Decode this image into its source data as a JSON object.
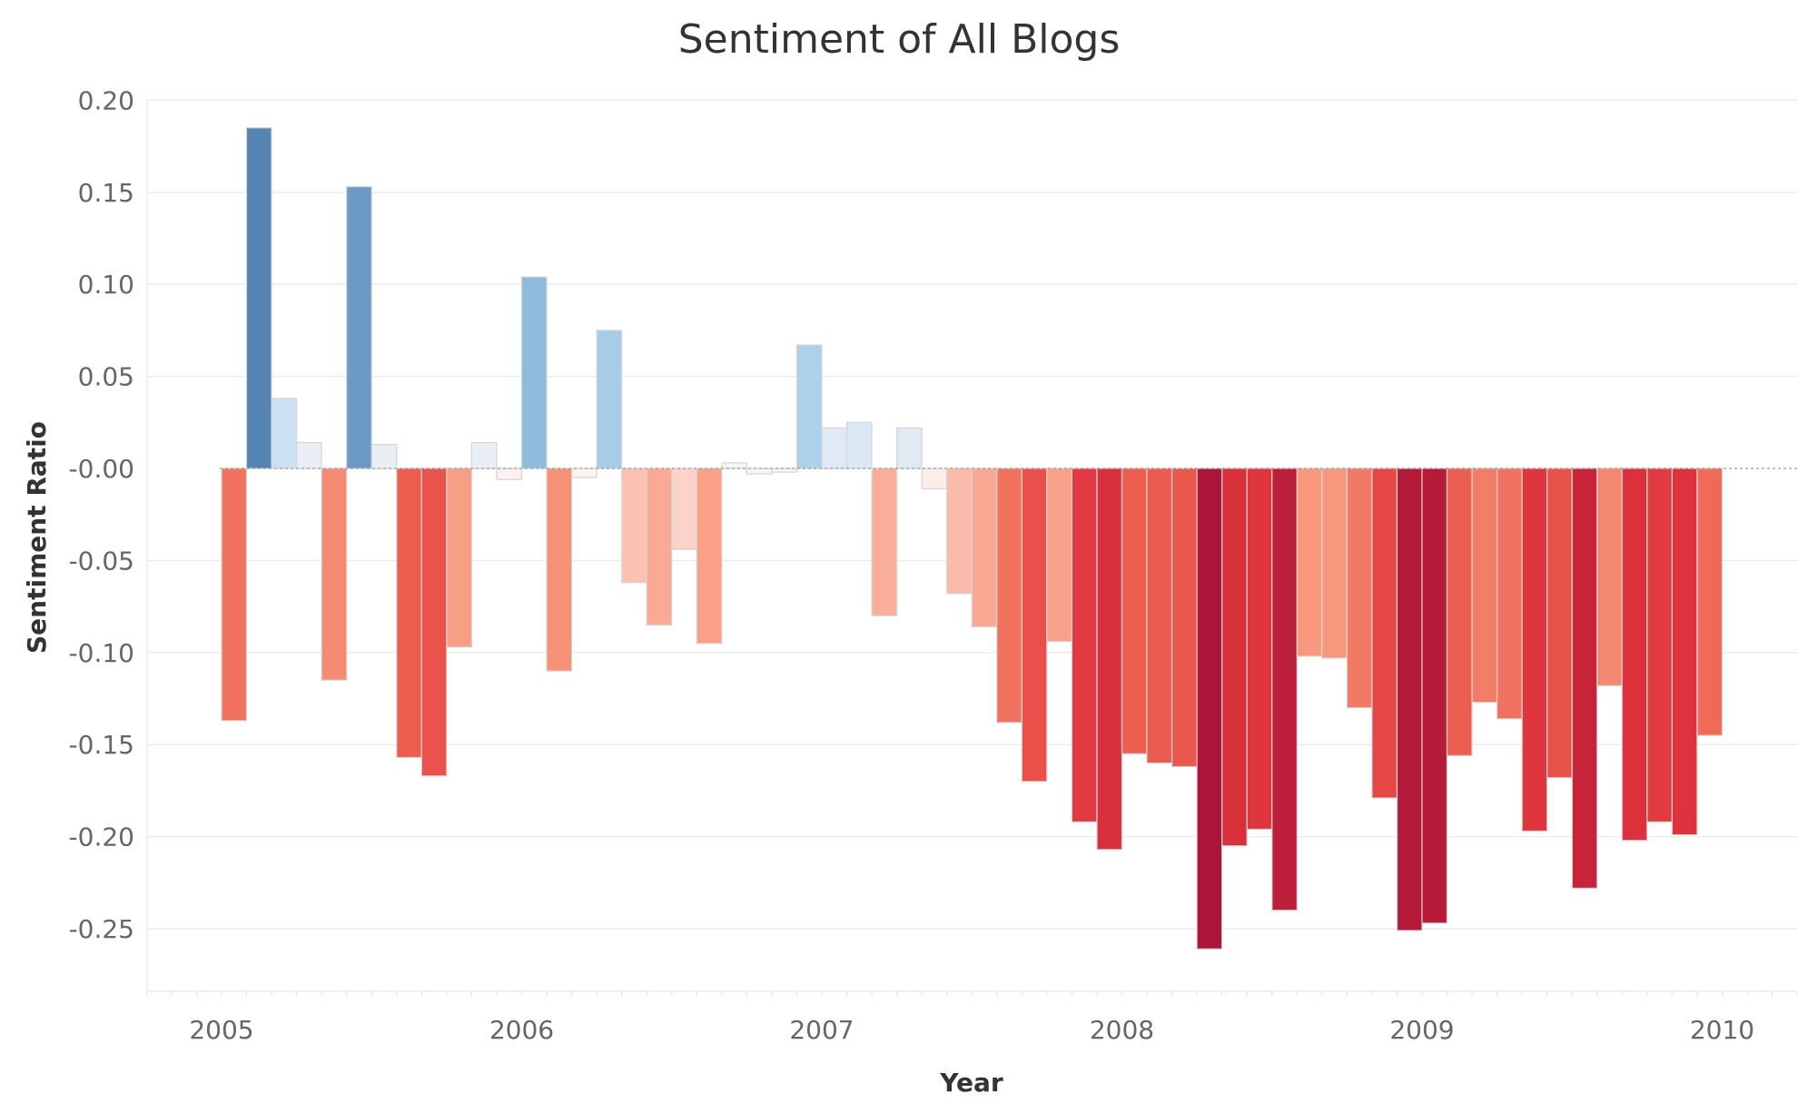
{
  "chart_data": {
    "type": "bar",
    "title": "Sentiment of All Blogs",
    "xlabel": "Year",
    "ylabel": "Sentiment Ratio",
    "ylim": [
      -0.27,
      0.2
    ],
    "grid": true,
    "legend": "none",
    "y_tick_labels": [
      "0.20",
      "0.15",
      "0.10",
      "0.05",
      "-0.00",
      "-0.05",
      "-0.10",
      "-0.15",
      "-0.20",
      "-0.25"
    ],
    "y_tick_values": [
      0.2,
      0.15,
      0.1,
      0.05,
      0.0,
      -0.05,
      -0.1,
      -0.15,
      -0.2,
      -0.25
    ],
    "x_tick_labels": [
      "2005",
      "2006",
      "2007",
      "2008",
      "2009",
      "2010"
    ],
    "x_tick_values": [
      2005,
      2006,
      2007,
      2008,
      2009,
      2010
    ],
    "x_range": [
      2004.75,
      2010.25
    ],
    "bar_width_years": 0.0833,
    "x": [
      2005.0417,
      2005.125,
      2005.2083,
      2005.2917,
      2005.375,
      2005.4583,
      2005.5417,
      2005.625,
      2005.7083,
      2005.7917,
      2005.875,
      2005.9583,
      2006.0417,
      2006.125,
      2006.2083,
      2006.2917,
      2006.375,
      2006.4583,
      2006.5417,
      2006.625,
      2006.7083,
      2006.7917,
      2006.875,
      2006.9583,
      2007.0417,
      2007.125,
      2007.2083,
      2007.2917,
      2007.375,
      2007.4583,
      2007.5417,
      2007.625,
      2007.7083,
      2007.7917,
      2007.875,
      2007.9583,
      2008.0417,
      2008.125,
      2008.2083,
      2008.2917,
      2008.375,
      2008.4583,
      2008.5417,
      2008.625,
      2008.7083,
      2008.7917,
      2008.875,
      2008.9583,
      2009.0417,
      2009.125,
      2009.2083,
      2009.2917,
      2009.375,
      2009.4583,
      2009.5417,
      2009.625,
      2009.7083,
      2009.7917,
      2009.875,
      2009.9583
    ],
    "values": [
      -0.137,
      0.185,
      0.038,
      0.014,
      -0.115,
      0.153,
      0.013,
      -0.157,
      -0.167,
      -0.097,
      0.014,
      -0.006,
      0.104,
      -0.11,
      -0.005,
      0.075,
      -0.062,
      -0.085,
      -0.044,
      -0.095,
      0.003,
      -0.003,
      -0.002,
      0.067,
      0.022,
      0.025,
      -0.08,
      0.022,
      -0.011,
      -0.068,
      -0.086,
      -0.138,
      -0.17,
      -0.094,
      -0.192,
      -0.207,
      -0.155,
      -0.16,
      -0.162,
      -0.261,
      -0.205,
      -0.196,
      -0.24,
      -0.102,
      -0.103,
      -0.13,
      -0.179,
      -0.251,
      -0.247,
      -0.156,
      -0.127,
      -0.136,
      -0.197,
      -0.168,
      -0.228,
      -0.118,
      -0.202,
      -0.192,
      -0.199,
      -0.145
    ]
  }
}
